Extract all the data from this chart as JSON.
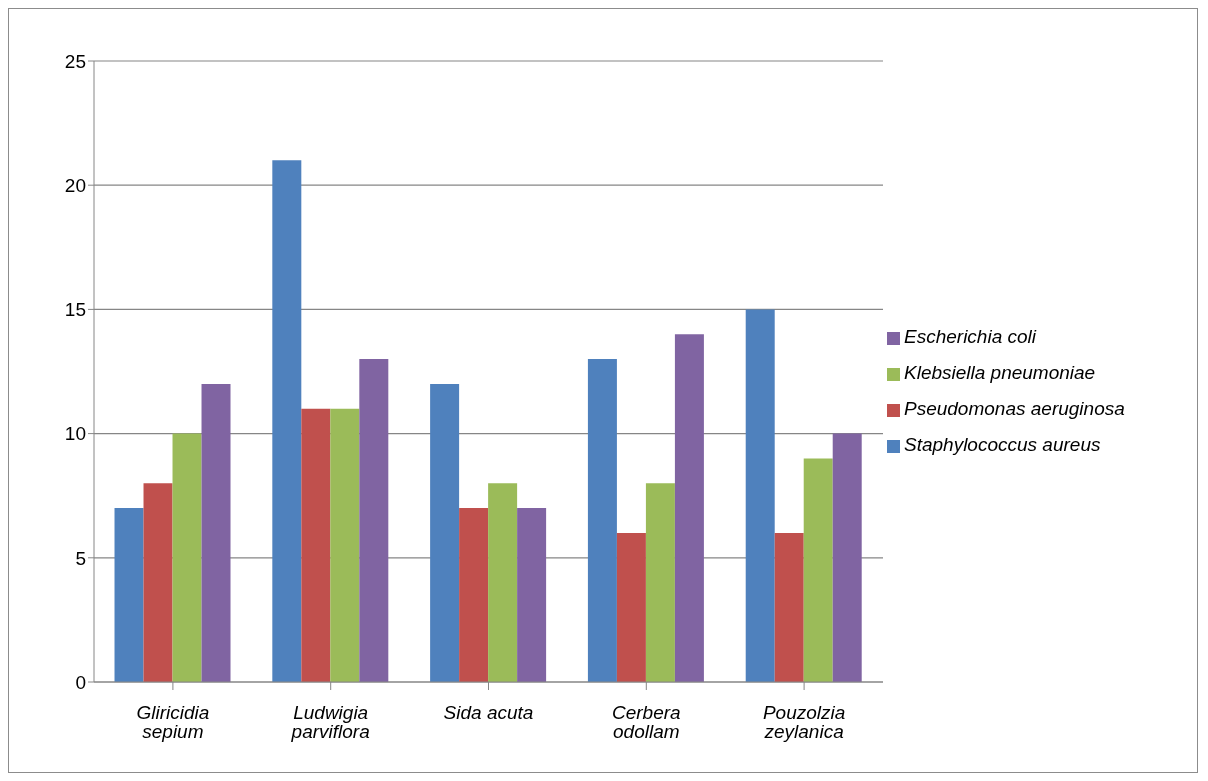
{
  "chart_data": {
    "type": "bar",
    "categories": [
      "Gliricidia sepium",
      "Ludwigia parviflora",
      "Sida acuta",
      "Cerbera odollam",
      "Pouzolzia zeylanica"
    ],
    "series": [
      {
        "name": "Staphylococcus aureus",
        "color": "#4f81bd",
        "values": [
          7,
          21,
          12,
          13,
          15
        ]
      },
      {
        "name": "Pseudomonas aeruginosa",
        "color": "#c0504d",
        "values": [
          8,
          11,
          7,
          6,
          6
        ]
      },
      {
        "name": "Klebsiella pneumoniae",
        "color": "#9bbb59",
        "values": [
          10,
          11,
          8,
          8,
          9
        ]
      },
      {
        "name": "Escherichia coli",
        "color": "#8064a2",
        "values": [
          12,
          13,
          7,
          14,
          10
        ]
      }
    ],
    "ylim": [
      0,
      25
    ],
    "yticks": [
      0,
      5,
      10,
      15,
      20,
      25
    ],
    "grid": "y",
    "legend": "right"
  }
}
